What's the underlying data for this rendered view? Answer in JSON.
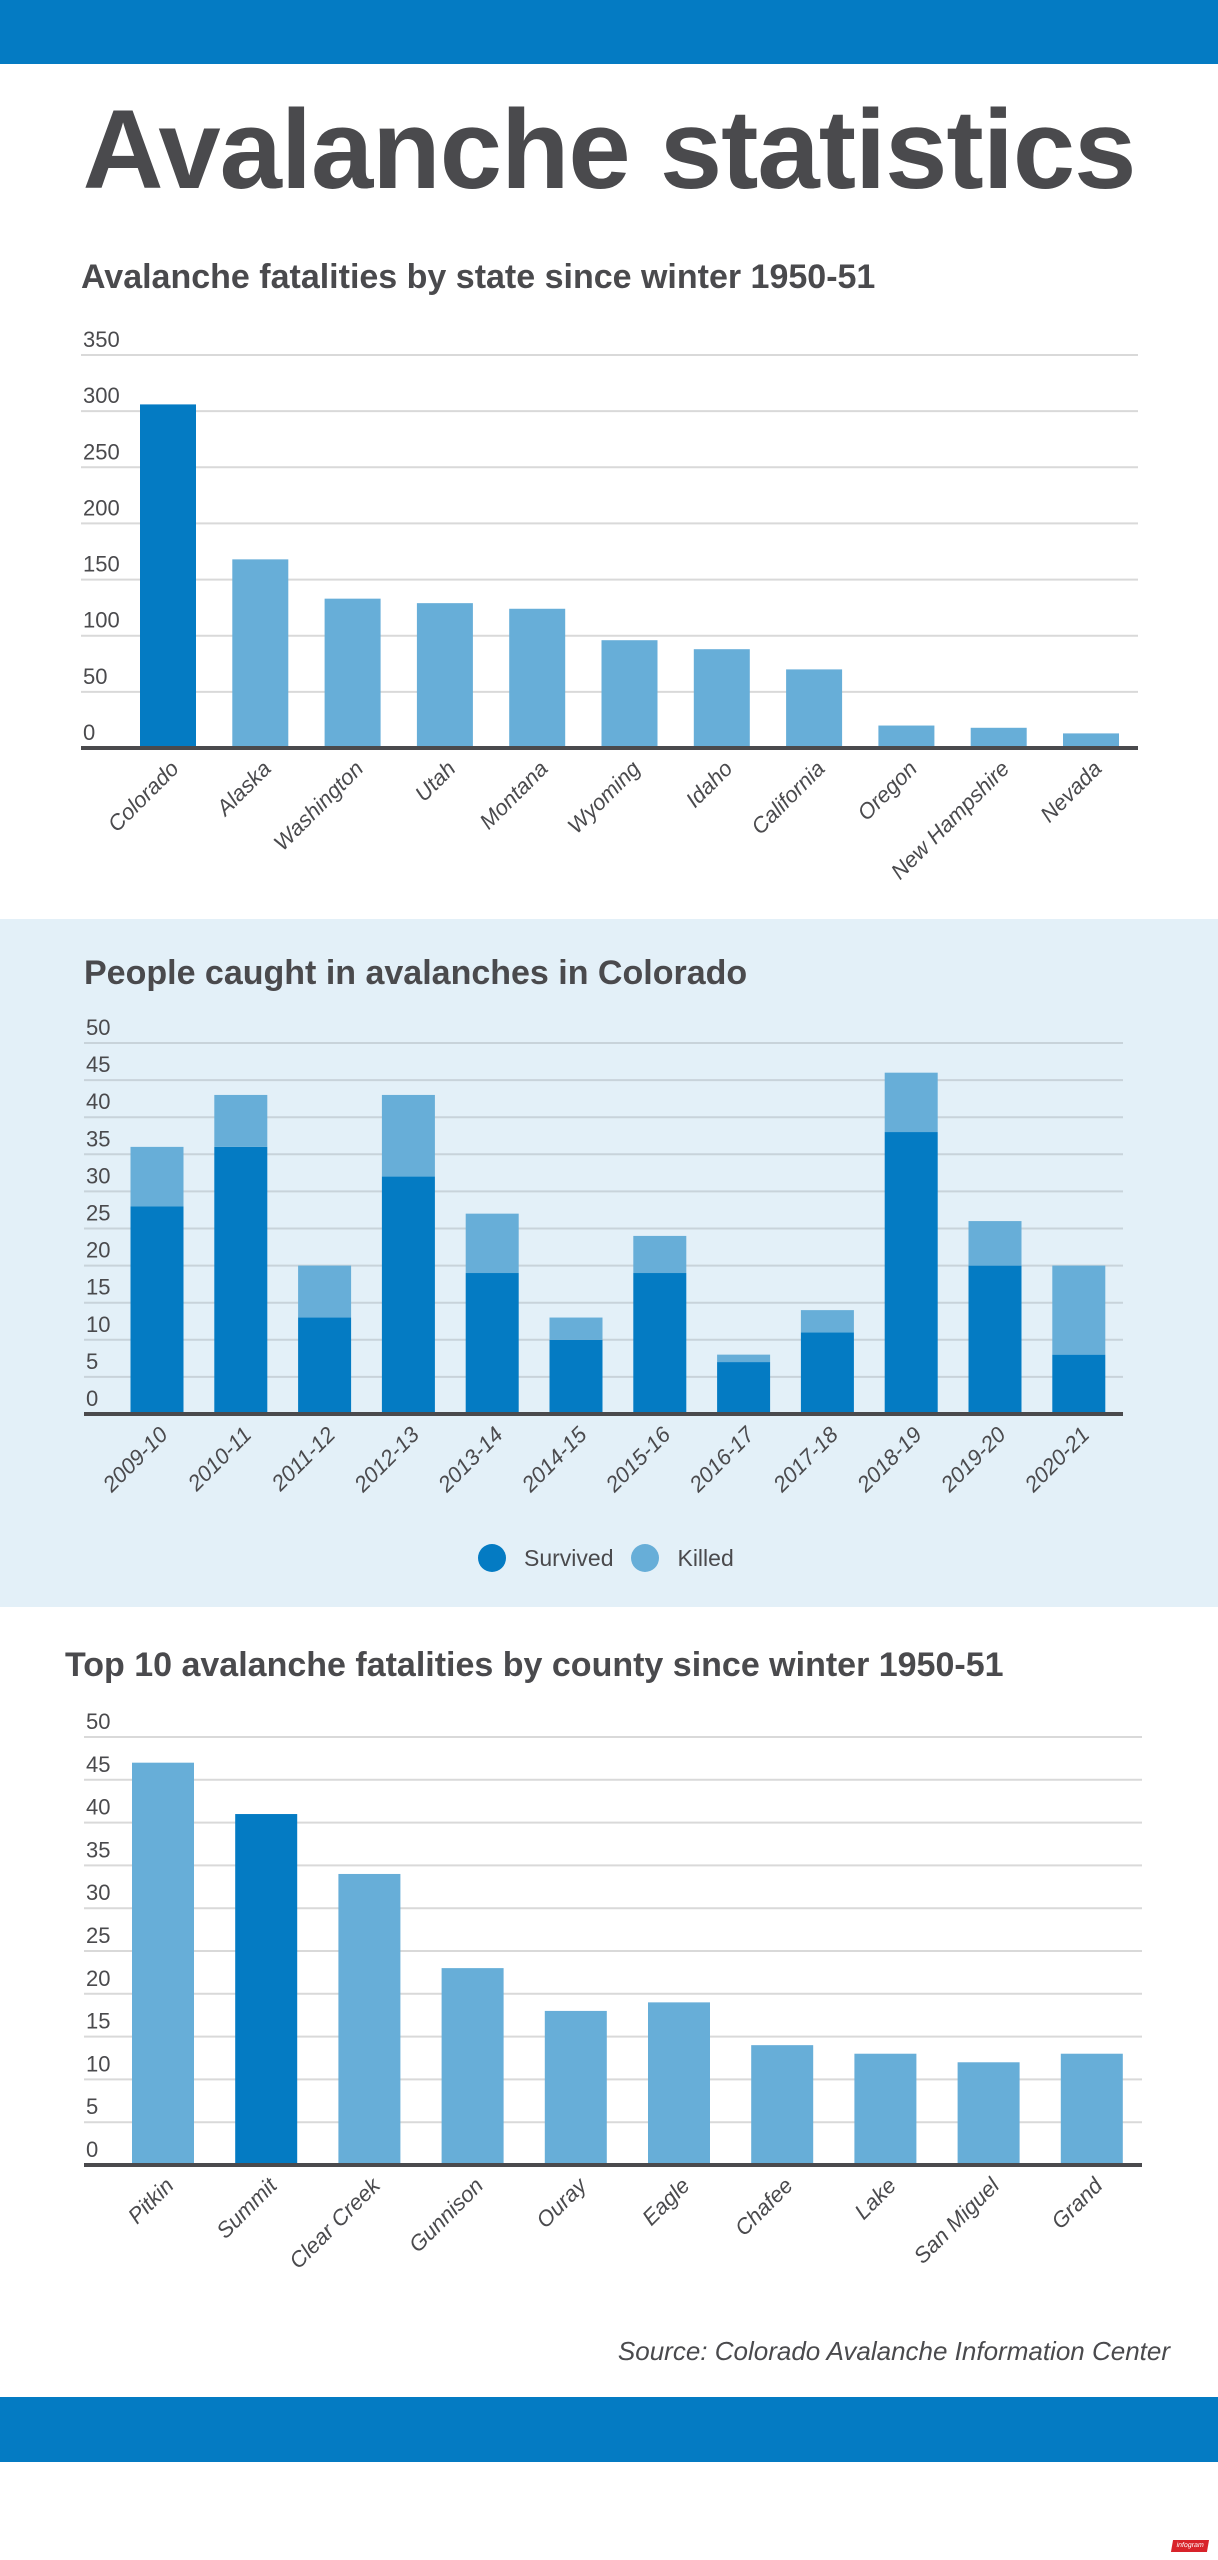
{
  "header": {
    "title": "Avalanche statistics"
  },
  "colors": {
    "dark_blue": "#047bc3",
    "light_blue": "#67aed8",
    "band_bg": "#e3f0f8",
    "text": "#4a4a4d"
  },
  "chart_data": [
    {
      "type": "bar",
      "title": "Avalanche fatalities by state since winter 1950-51",
      "categories": [
        "Colorado",
        "Alaska",
        "Washington",
        "Utah",
        "Montana",
        "Wyoming",
        "Idaho",
        "California",
        "Oregon",
        "New Hampshire",
        "Nevada"
      ],
      "values": [
        306,
        168,
        133,
        129,
        124,
        96,
        88,
        70,
        20,
        18,
        13
      ],
      "highlight": [
        "Colorado"
      ],
      "yticks": [
        "0",
        "50",
        "100",
        "150",
        "200",
        "250",
        "300",
        "350"
      ],
      "ylim": [
        0,
        350
      ],
      "xlabel": "",
      "ylabel": "",
      "grid": true
    },
    {
      "type": "bar",
      "stacked": true,
      "title": "People caught in avalanches in Colorado",
      "categories": [
        "2009-10",
        "2010-11",
        "2011-12",
        "2012-13",
        "2013-14",
        "2014-15",
        "2015-16",
        "2016-17",
        "2017-18",
        "2018-19",
        "2019-20",
        "2020-21"
      ],
      "series": [
        {
          "name": "Survived",
          "values": [
            28,
            36,
            13,
            32,
            19,
            10,
            19,
            7,
            11,
            38,
            20,
            8
          ]
        },
        {
          "name": "Killed",
          "values": [
            8,
            7,
            7,
            11,
            8,
            3,
            5,
            1,
            3,
            8,
            6,
            12
          ]
        }
      ],
      "yticks": [
        "0",
        "5",
        "10",
        "15",
        "20",
        "25",
        "30",
        "35",
        "40",
        "45",
        "50"
      ],
      "ylim": [
        0,
        50
      ],
      "legend": {
        "position": "bottom-center",
        "entries": [
          "Survived",
          "Killed"
        ]
      },
      "xlabel": "",
      "ylabel": "",
      "grid": true
    },
    {
      "type": "bar",
      "title": "Top 10 avalanche fatalities by county since winter 1950-51",
      "categories": [
        "Pitkin",
        "Summit",
        "Clear Creek",
        "Gunnison",
        "Ouray",
        "Eagle",
        "Chafee",
        "Lake",
        "San Miguel",
        "Grand"
      ],
      "values": [
        47,
        41,
        34,
        23,
        18,
        19,
        14,
        13,
        12,
        13
      ],
      "highlight": [
        "Summit"
      ],
      "yticks": [
        "0",
        "5",
        "10",
        "15",
        "20",
        "25",
        "30",
        "35",
        "40",
        "45",
        "50"
      ],
      "ylim": [
        0,
        50
      ],
      "xlabel": "",
      "ylabel": "",
      "grid": true
    }
  ],
  "footer": {
    "source": "Source: Colorado Avalanche Information Center",
    "logo": "infogram"
  }
}
